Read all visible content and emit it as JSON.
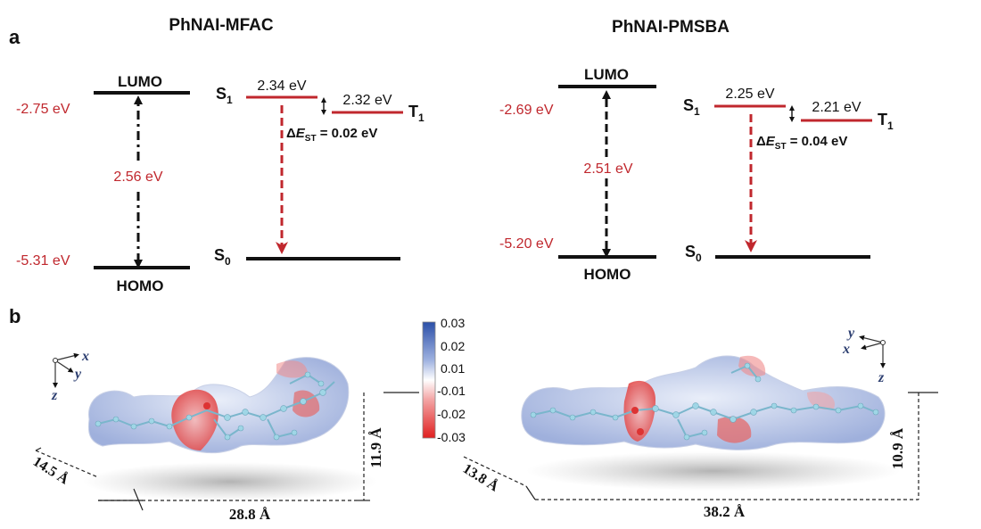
{
  "panel_a": {
    "label": "a",
    "left": {
      "title": "PhNAI-MFAC",
      "lumo_label": "LUMO",
      "homo_label": "HOMO",
      "lumo_energy": "-2.75 eV",
      "homo_energy": "-5.31 eV",
      "gap": "2.56 eV",
      "s1_label": "S",
      "s1_sub": "1",
      "s1_energy": "2.34 eV",
      "t1_label": "T",
      "t1_sub": "1",
      "t1_energy": "2.32 eV",
      "s0_label": "S",
      "s0_sub": "0",
      "dest_prefix": "Δ",
      "dest_e": "E",
      "dest_sub": "ST",
      "dest_value": " = 0.02 eV"
    },
    "right": {
      "title": "PhNAI-PMSBA",
      "lumo_label": "LUMO",
      "homo_label": "HOMO",
      "lumo_energy": "-2.69 eV",
      "homo_energy": "-5.20 eV",
      "gap": "2.51 eV",
      "s1_label": "S",
      "s1_sub": "1",
      "s1_energy": "2.25 eV",
      "t1_label": "T",
      "t1_sub": "1",
      "t1_energy": "2.21 eV",
      "s0_label": "S",
      "s0_sub": "0",
      "dest_prefix": "Δ",
      "dest_e": "E",
      "dest_sub": "ST",
      "dest_value": " = 0.04 eV"
    }
  },
  "panel_b": {
    "label": "b",
    "colorbar_ticks": [
      "0.03",
      "0.02",
      "0.01",
      "-0.01",
      "-0.02",
      "-0.03"
    ],
    "left": {
      "axis_x": "x",
      "axis_y": "y",
      "axis_z": "z",
      "depth": "14.5 Å",
      "length": "28.8 Å",
      "height": "11.9 Å"
    },
    "right": {
      "axis_x": "x",
      "axis_y": "y",
      "axis_z": "z",
      "depth": "13.8 Å",
      "length": "38.2 Å",
      "height": "10.9 Å"
    }
  },
  "colors": {
    "level_red": "#c0272d",
    "level_black": "#111111",
    "esp_positive": "#2b4fa8",
    "esp_negative": "#e02020"
  }
}
